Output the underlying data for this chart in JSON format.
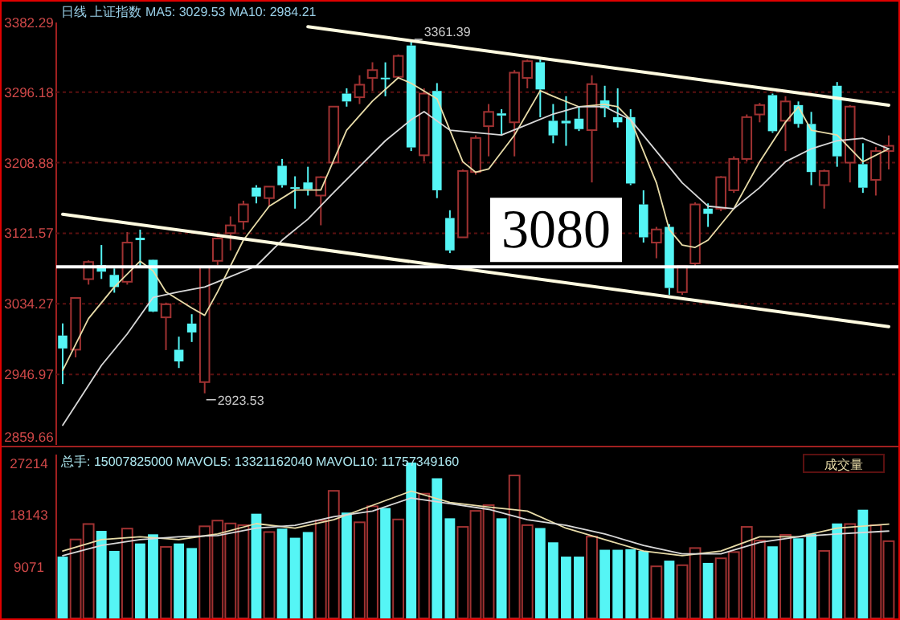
{
  "chart_data": [
    {
      "type": "candlestick",
      "title": "日线 上证指数 MA5: 3029.53 MA10: 2984.21",
      "categories": [
        null,
        null,
        null,
        null,
        null,
        null,
        null,
        null,
        null,
        null,
        null,
        null,
        null,
        null,
        null,
        null,
        null,
        null,
        null,
        null,
        null,
        null,
        null,
        null,
        null,
        null,
        null,
        null,
        null,
        null,
        null,
        null,
        null,
        null,
        null,
        null,
        null,
        null,
        null,
        null,
        null,
        null,
        null,
        null,
        null,
        null,
        null,
        null,
        null,
        null,
        null,
        null,
        null,
        null,
        null,
        null,
        null,
        null,
        null,
        null,
        null,
        null,
        null,
        null,
        null
      ],
      "ohlc": [
        [
          2995,
          3010,
          2935,
          2979
        ],
        [
          2977.5,
          3041.5,
          2968,
          3041.5
        ],
        [
          3064.8,
          3088,
          3058,
          3086
        ],
        [
          3082,
          3107,
          3065,
          3074
        ],
        [
          3070,
          3078,
          3048,
          3055
        ],
        [
          3061.5,
          3123,
          3058,
          3110
        ],
        [
          3116,
          3126,
          3081,
          3113
        ],
        [
          3088.7,
          3089,
          3024,
          3024.7
        ],
        [
          3017.5,
          3035.7,
          2977,
          3033.7
        ],
        [
          2977.4,
          2993.6,
          2954.8,
          2963
        ],
        [
          3009.8,
          3021.4,
          2987,
          2998.8
        ],
        [
          2937.4,
          3081,
          2923.53,
          3079.6
        ],
        [
          3087.4,
          3116.5,
          3082,
          3115
        ],
        [
          3121.7,
          3142.4,
          3100.3,
          3131.3
        ],
        [
          3135.9,
          3161.8,
          3126.2,
          3157.2
        ],
        [
          3178,
          3181,
          3158.5,
          3167
        ],
        [
          3165,
          3179.2,
          3155.3,
          3179.2
        ],
        [
          3205,
          3213.5,
          3178,
          3181
        ],
        [
          3178.5,
          3192,
          3152,
          3177.5
        ],
        [
          3184.4,
          3203.8,
          3168.2,
          3176
        ],
        [
          3168.2,
          3192,
          3131.4,
          3190.9
        ],
        [
          3209,
          3278.2,
          3207,
          3278.2
        ],
        [
          3294.3,
          3300.8,
          3278.2,
          3284.6
        ],
        [
          3289.8,
          3317,
          3281.4,
          3305.3
        ],
        [
          3313.7,
          3333.1,
          3297.6,
          3323.4
        ],
        [
          3314,
          3333,
          3291,
          3313
        ],
        [
          3315,
          3342.8,
          3313.7,
          3340.9
        ],
        [
          3353.8,
          3361.39,
          3223.2,
          3227.7
        ],
        [
          3218,
          3300.8,
          3210.3,
          3294.3
        ],
        [
          3297.6,
          3307.3,
          3165,
          3174.7
        ],
        [
          3140.4,
          3150,
          3097,
          3100.3
        ],
        [
          3116.5,
          3200.5,
          3116.5,
          3198.6
        ],
        [
          3197.3,
          3242.6,
          3194,
          3239.4
        ],
        [
          3254,
          3281.4,
          3216.7,
          3271.7
        ],
        [
          3269.8,
          3275,
          3242.6,
          3267.2
        ],
        [
          3258.8,
          3323.4,
          3216.7,
          3320.2
        ],
        [
          3313.7,
          3336.4,
          3300.8,
          3334.4
        ],
        [
          3333.1,
          3336.4,
          3265,
          3299.5
        ],
        [
          3260.7,
          3281.4,
          3232.9,
          3242.6
        ],
        [
          3260.7,
          3291.1,
          3229.7,
          3257.5
        ],
        [
          3263.3,
          3278.2,
          3248,
          3250.4
        ],
        [
          3249.1,
          3317,
          3184.4,
          3306
        ],
        [
          3285.9,
          3304,
          3265,
          3276.2
        ],
        [
          3265.2,
          3300.8,
          3252.3,
          3258.8
        ],
        [
          3265.2,
          3275,
          3181.1,
          3183.1
        ],
        [
          3157.2,
          3174.7,
          3110,
          3116.5
        ],
        [
          3110,
          3129.4,
          3090.6,
          3126.2
        ],
        [
          3129.4,
          3132.7,
          3045.3,
          3053.8
        ],
        [
          3048.6,
          3080.9,
          3045.3,
          3080.9
        ],
        [
          3084.2,
          3159.8,
          3080.9,
          3157.2
        ],
        [
          3152,
          3158.5,
          3129.4,
          3145.6
        ],
        [
          3152,
          3192.2,
          3148.8,
          3190.9
        ],
        [
          3174.7,
          3216.7,
          3171.5,
          3213.5
        ],
        [
          3213.5,
          3268.5,
          3210.3,
          3265.2
        ],
        [
          3268.5,
          3282.7,
          3258.8,
          3280.1
        ],
        [
          3292.4,
          3294.3,
          3245.8,
          3247.8
        ],
        [
          3260.7,
          3291.1,
          3223.2,
          3284.6
        ],
        [
          3280.1,
          3284.6,
          3252.3,
          3256.8
        ],
        [
          3256.8,
          3271.7,
          3181.1,
          3197.3
        ],
        [
          3181.1,
          3200.5,
          3152,
          3198.6
        ],
        [
          3304,
          3308.6,
          3203.8,
          3216.7
        ],
        [
          3208.9,
          3280.1,
          3184.4,
          3278.2
        ],
        [
          3207,
          3232.9,
          3171.5,
          3177.9
        ],
        [
          3187.6,
          3228.4,
          3168.2,
          3223.2
        ],
        [
          3223.2,
          3242.6,
          3200.5,
          3229.7
        ]
      ],
      "series": [
        {
          "type": "line",
          "color": "#e8dca8",
          "values": [
            2952,
            null,
            3016,
            null,
            3055,
            null,
            3087,
            3075,
            3049,
            null,
            3029,
            3020,
            3049,
            null,
            3113,
            null,
            3155,
            null,
            3175,
            null,
            3175,
            null,
            3249,
            null,
            3285,
            null,
            3314,
            3307,
            null,
            3288,
            3249,
            3210,
            3197,
            3201,
            null,
            3243,
            null,
            3298,
            3291,
            null,
            3278,
            null,
            3281,
            3278,
            3262,
            null,
            3184,
            3126,
            3107,
            3104,
            3113,
            null,
            3152,
            null,
            3210,
            null,
            3259,
            3278,
            3249,
            null,
            3243,
            null,
            3210,
            null,
            3226
          ]
        },
        {
          "type": "line",
          "color": "#d8d8d8",
          "values": [
            2884,
            null,
            null,
            2958,
            null,
            2997,
            null,
            3042,
            null,
            3049,
            null,
            3055,
            null,
            3068,
            null,
            3081,
            null,
            3113,
            null,
            3139,
            null,
            3172,
            null,
            3204,
            null,
            3236,
            null,
            3262,
            3272,
            null,
            3249,
            null,
            3246,
            null,
            3243,
            null,
            3256,
            null,
            3269,
            null,
            3278,
            null,
            3278,
            null,
            3262,
            null,
            3223,
            null,
            3184,
            null,
            3155,
            null,
            3152,
            null,
            3178,
            null,
            3210,
            null,
            3226,
            null,
            3236,
            null,
            3239,
            null,
            3226
          ]
        },
        {
          "type": "line",
          "color": "#fffbe0",
          "values": [
            null,
            null,
            null,
            null,
            null,
            null,
            null,
            null,
            null,
            null,
            null,
            null,
            null,
            null,
            null,
            null,
            null,
            null,
            null,
            3377,
            null,
            null,
            null,
            null,
            null,
            null,
            null,
            null,
            null,
            null,
            null,
            null,
            null,
            null,
            null,
            null,
            null,
            null,
            null,
            null,
            null,
            null,
            null,
            null,
            null,
            null,
            null,
            null,
            null,
            null,
            null,
            null,
            null,
            null,
            null,
            null,
            null,
            null,
            null,
            null,
            null,
            null,
            null,
            null,
            3280
          ]
        },
        {
          "type": "line",
          "color": "#fffbe0",
          "values": [
            3145,
            null,
            null,
            null,
            null,
            null,
            null,
            null,
            null,
            null,
            null,
            null,
            null,
            null,
            null,
            null,
            null,
            null,
            null,
            null,
            null,
            null,
            null,
            null,
            null,
            null,
            null,
            null,
            null,
            null,
            null,
            null,
            null,
            null,
            null,
            null,
            null,
            null,
            null,
            null,
            null,
            null,
            null,
            null,
            null,
            null,
            null,
            null,
            null,
            null,
            null,
            null,
            null,
            null,
            null,
            null,
            null,
            null,
            null,
            null,
            null,
            null,
            null,
            null,
            3006
          ]
        }
      ],
      "ref_lines": [
        {
          "axis": "y",
          "value": 3080,
          "label": "3080",
          "color": "#ffffff"
        }
      ],
      "annotations": [
        "2923.53",
        "3361.39"
      ],
      "ylim": [
        2859.66,
        3382.29
      ],
      "yticks": [
        2859.66,
        2946.97,
        3034.27,
        3121.57,
        3208.88,
        3296.18,
        3382.29
      ],
      "grid": "y"
    },
    {
      "type": "bar",
      "title": "总手: 15007825000 MAVOL5: 13321162040 MAVOL10: 11757349160",
      "annotations": [
        "成交量"
      ],
      "categories": [
        null,
        null,
        null,
        null,
        null,
        null,
        null,
        null,
        null,
        null,
        null,
        null,
        null,
        null,
        null,
        null,
        null,
        null,
        null,
        null,
        null,
        null,
        null,
        null,
        null,
        null,
        null,
        null,
        null,
        null,
        null,
        null,
        null,
        null,
        null,
        null,
        null,
        null,
        null,
        null,
        null,
        null,
        null,
        null,
        null,
        null,
        null,
        null,
        null,
        null,
        null,
        null,
        null,
        null,
        null,
        null,
        null,
        null,
        null,
        null,
        null,
        null,
        null,
        null,
        null
      ],
      "series": [
        {
          "values": [
            10822,
            13828,
            16533,
            15330,
            11824,
            15731,
            13126,
            14729,
            12525,
            13126,
            12325,
            16132,
            17134,
            16633,
            16333,
            18337,
            15130,
            15731,
            14128,
            15130,
            17134,
            22345,
            18537,
            16834,
            19640,
            19339,
            17335,
            27300,
            21844,
            24549,
            17535,
            16032,
            18838,
            19840,
            17535,
            25050,
            16333,
            15831,
            13327,
            10822,
            10822,
            14329,
            12024,
            12024,
            12124,
            11824,
            9118,
            10120,
            9319,
            12325,
            9719,
            10521,
            11623,
            16032,
            13627,
            12625,
            14629,
            14028,
            14829,
            11824,
            16633,
            16533,
            19038,
            16333,
            13527
          ],
          "colors": [
            "#55f5f5",
            "#a03232",
            "#a03232",
            "#55f5f5",
            "#55f5f5",
            "#a03232",
            "#55f5f5",
            "#55f5f5",
            "#a03232",
            "#55f5f5",
            "#55f5f5",
            "#a03232",
            "#a03232",
            "#a03232",
            "#a03232",
            "#55f5f5",
            "#a03232",
            "#55f5f5",
            "#55f5f5",
            "#55f5f5",
            "#a03232",
            "#a03232",
            "#55f5f5",
            "#a03232",
            "#a03232",
            "#55f5f5",
            "#a03232",
            "#55f5f5",
            "#a03232",
            "#55f5f5",
            "#55f5f5",
            "#a03232",
            "#a03232",
            "#a03232",
            "#55f5f5",
            "#a03232",
            "#a03232",
            "#55f5f5",
            "#55f5f5",
            "#55f5f5",
            "#55f5f5",
            "#a03232",
            "#55f5f5",
            "#55f5f5",
            "#55f5f5",
            "#55f5f5",
            "#a03232",
            "#55f5f5",
            "#a03232",
            "#a03232",
            "#55f5f5",
            "#a03232",
            "#a03232",
            "#a03232",
            "#a03232",
            "#55f5f5",
            "#a03232",
            "#55f5f5",
            "#55f5f5",
            "#a03232",
            "#55f5f5",
            "#a03232",
            "#55f5f5",
            "#a03232",
            "#a03232"
          ]
        },
        {
          "type": "line",
          "color": "#e8dca8",
          "values": [
            11800,
            null,
            null,
            13800,
            null,
            null,
            14300,
            null,
            null,
            13800,
            null,
            null,
            14800,
            null,
            null,
            16600,
            null,
            null,
            15800,
            null,
            null,
            17300,
            null,
            null,
            19800,
            null,
            null,
            22300,
            null,
            null,
            20300,
            null,
            null,
            19500,
            null,
            null,
            18800,
            null,
            null,
            15800,
            null,
            null,
            13800,
            null,
            null,
            11800,
            null,
            null,
            11000,
            null,
            null,
            11800,
            null,
            null,
            14300,
            null,
            null,
            14300,
            null,
            null,
            15800,
            null,
            null,
            null,
            16500
          ]
        },
        {
          "type": "line",
          "color": "#d8d8d8",
          "values": [
            11000,
            null,
            null,
            12800,
            null,
            null,
            13800,
            null,
            null,
            14300,
            null,
            null,
            14500,
            null,
            null,
            15800,
            null,
            null,
            16300,
            null,
            null,
            17800,
            null,
            null,
            18800,
            null,
            null,
            21100,
            null,
            null,
            20100,
            null,
            null,
            19100,
            null,
            null,
            17300,
            null,
            null,
            16300,
            null,
            null,
            14800,
            null,
            null,
            12800,
            null,
            null,
            11300,
            null,
            null,
            11300,
            null,
            null,
            13300,
            null,
            null,
            14300,
            null,
            null,
            14800,
            null,
            null,
            null,
            15300
          ]
        }
      ],
      "ylim": [
        0,
        28700
      ],
      "yticks": [
        9071,
        18143,
        27214
      ]
    }
  ]
}
